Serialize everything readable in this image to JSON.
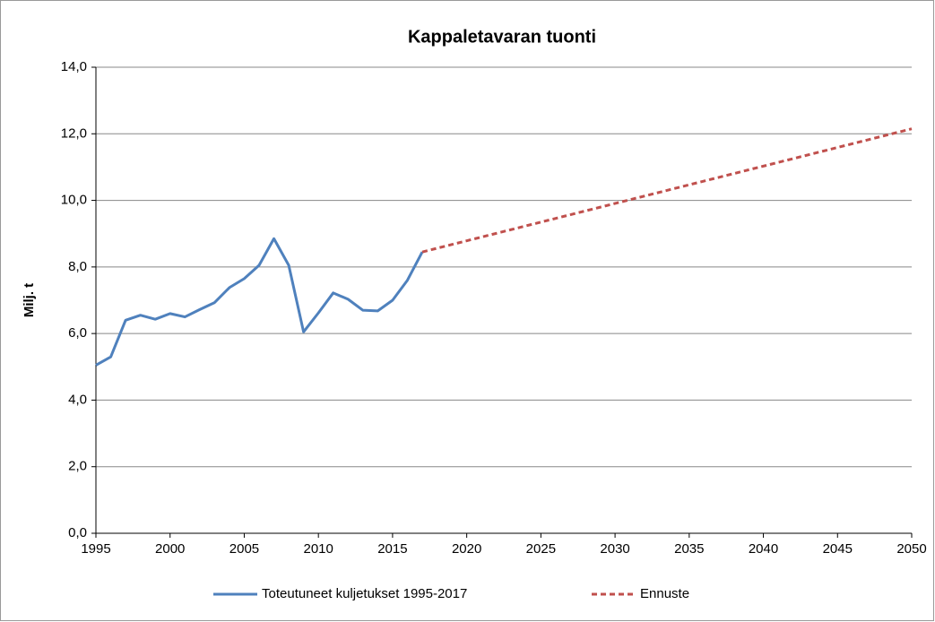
{
  "chart_data": {
    "type": "line",
    "title": "Kappaletavaran tuonti",
    "ylabel": "Milj. t",
    "series": [
      {
        "name": "Toteutuneet kuljetukset 1995-2017",
        "color": "#4f81bd",
        "style": "solid",
        "x": [
          1995,
          1996,
          1997,
          1998,
          1999,
          2000,
          2001,
          2002,
          2003,
          2004,
          2005,
          2006,
          2007,
          2008,
          2009,
          2010,
          2011,
          2012,
          2013,
          2014,
          2015,
          2016,
          2017
        ],
        "values": [
          5.05,
          5.3,
          6.4,
          6.55,
          6.43,
          6.6,
          6.5,
          6.72,
          6.93,
          7.38,
          7.65,
          8.05,
          8.85,
          8.05,
          6.05,
          6.62,
          7.22,
          7.03,
          6.7,
          6.68,
          7.0,
          7.6,
          8.45
        ]
      },
      {
        "name": "Ennuste",
        "color": "#c0504d",
        "style": "dashed",
        "x": [
          2017,
          2050
        ],
        "values": [
          8.45,
          12.15
        ]
      }
    ],
    "xlim": [
      1995,
      2050
    ],
    "xticks": [
      1995,
      2000,
      2005,
      2010,
      2015,
      2020,
      2025,
      2030,
      2035,
      2040,
      2045,
      2050
    ],
    "ylim": [
      0,
      14
    ],
    "yticks": [
      {
        "value": 0,
        "label": "0,0"
      },
      {
        "value": 2,
        "label": "2,0"
      },
      {
        "value": 4,
        "label": "4,0"
      },
      {
        "value": 6,
        "label": "6,0"
      },
      {
        "value": 8,
        "label": "8,0"
      },
      {
        "value": 10,
        "label": "10,0"
      },
      {
        "value": 12,
        "label": "12,0"
      },
      {
        "value": 14,
        "label": "14,0"
      }
    ],
    "grid": true,
    "legend": "bottom"
  }
}
